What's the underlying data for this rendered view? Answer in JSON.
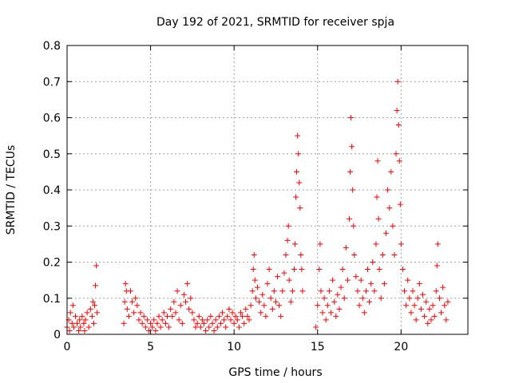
{
  "chart_data": {
    "type": "scatter",
    "title": "Day 192 of 2021, SRMTID for receiver spja",
    "xlabel": "GPS time / hours",
    "ylabel": "SRMTID / TECUs",
    "xlim": [
      0,
      24
    ],
    "ylim": [
      0,
      0.8
    ],
    "x_ticks": [
      0,
      5,
      10,
      15,
      20
    ],
    "y_ticks": [
      0,
      0.1,
      0.2,
      0.3,
      0.4,
      0.5,
      0.6,
      0.7,
      0.8
    ],
    "x_tick_labels": [
      "0",
      "5",
      "10",
      "15",
      "20"
    ],
    "y_tick_labels": [
      "0",
      "0.1",
      "0.2",
      "0.3",
      "0.4",
      "0.5",
      "0.6",
      "0.7",
      "0.8"
    ],
    "grid": true,
    "marker": "+",
    "marker_color": "#ff0000",
    "series": [
      {
        "name": "SRMTID",
        "points": [
          [
            0.0,
            0.02
          ],
          [
            0.1,
            0.04
          ],
          [
            0.15,
            0.01
          ],
          [
            0.2,
            0.06
          ],
          [
            0.3,
            0.03
          ],
          [
            0.35,
            0.08
          ],
          [
            0.4,
            0.02
          ],
          [
            0.5,
            0.05
          ],
          [
            0.6,
            0.03
          ],
          [
            0.7,
            0.01
          ],
          [
            0.75,
            0.04
          ],
          [
            0.8,
            0.02
          ],
          [
            0.9,
            0.05
          ],
          [
            1.0,
            0.03
          ],
          [
            1.05,
            0.01
          ],
          [
            1.1,
            0.04
          ],
          [
            1.2,
            0.06
          ],
          [
            1.3,
            0.02
          ],
          [
            1.4,
            0.07
          ],
          [
            1.5,
            0.05
          ],
          [
            1.55,
            0.09
          ],
          [
            1.6,
            0.03
          ],
          [
            1.65,
            0.08
          ],
          [
            1.7,
            0.135
          ],
          [
            1.75,
            0.19
          ],
          [
            1.8,
            0.06
          ],
          [
            3.4,
            0.03
          ],
          [
            3.45,
            0.09
          ],
          [
            3.5,
            0.14
          ],
          [
            3.55,
            0.12
          ],
          [
            3.6,
            0.07
          ],
          [
            3.7,
            0.05
          ],
          [
            3.8,
            0.12
          ],
          [
            3.9,
            0.09
          ],
          [
            4.0,
            0.06
          ],
          [
            4.1,
            0.1
          ],
          [
            4.2,
            0.08
          ],
          [
            4.3,
            0.04
          ],
          [
            4.4,
            0.06
          ],
          [
            4.5,
            0.03
          ],
          [
            4.6,
            0.05
          ],
          [
            4.7,
            0.02
          ],
          [
            4.8,
            0.04
          ],
          [
            4.9,
            0.01
          ],
          [
            5.0,
            0.03
          ],
          [
            5.1,
            0.02
          ],
          [
            5.2,
            0.04
          ],
          [
            5.3,
            0.01
          ],
          [
            5.4,
            0.03
          ],
          [
            5.5,
            0.05
          ],
          [
            5.6,
            0.02
          ],
          [
            5.7,
            0.04
          ],
          [
            5.8,
            0.06
          ],
          [
            5.9,
            0.03
          ],
          [
            6.0,
            0.05
          ],
          [
            6.1,
            0.02
          ],
          [
            6.2,
            0.07
          ],
          [
            6.3,
            0.05
          ],
          [
            6.4,
            0.09
          ],
          [
            6.5,
            0.06
          ],
          [
            6.6,
            0.12
          ],
          [
            6.7,
            0.04
          ],
          [
            6.8,
            0.08
          ],
          [
            6.9,
            0.03
          ],
          [
            7.0,
            0.11
          ],
          [
            7.1,
            0.09
          ],
          [
            7.2,
            0.14
          ],
          [
            7.3,
            0.07
          ],
          [
            7.4,
            0.1
          ],
          [
            7.5,
            0.06
          ],
          [
            7.6,
            0.04
          ],
          [
            7.7,
            0.02
          ],
          [
            7.8,
            0.03
          ],
          [
            7.9,
            0.05
          ],
          [
            8.0,
            0.02
          ],
          [
            8.1,
            0.04
          ],
          [
            8.2,
            0.03
          ],
          [
            8.3,
            0.01
          ],
          [
            8.4,
            0.04
          ],
          [
            8.5,
            0.02
          ],
          [
            8.6,
            0.05
          ],
          [
            8.7,
            0.03
          ],
          [
            8.8,
            0.01
          ],
          [
            8.9,
            0.04
          ],
          [
            9.0,
            0.02
          ],
          [
            9.1,
            0.05
          ],
          [
            9.2,
            0.03
          ],
          [
            9.3,
            0.06
          ],
          [
            9.4,
            0.04
          ],
          [
            9.5,
            0.02
          ],
          [
            9.6,
            0.05
          ],
          [
            9.7,
            0.07
          ],
          [
            9.8,
            0.04
          ],
          [
            9.9,
            0.06
          ],
          [
            10.0,
            0.03
          ],
          [
            10.1,
            0.05
          ],
          [
            10.2,
            0.04
          ],
          [
            10.3,
            0.02
          ],
          [
            10.4,
            0.06
          ],
          [
            10.5,
            0.05
          ],
          [
            10.6,
            0.03
          ],
          [
            10.7,
            0.07
          ],
          [
            10.8,
            0.05
          ],
          [
            10.9,
            0.04
          ],
          [
            11.0,
            0.08
          ],
          [
            11.1,
            0.12
          ],
          [
            11.15,
            0.18
          ],
          [
            11.2,
            0.22
          ],
          [
            11.25,
            0.15
          ],
          [
            11.3,
            0.1
          ],
          [
            11.4,
            0.13
          ],
          [
            11.5,
            0.09
          ],
          [
            11.6,
            0.06
          ],
          [
            11.7,
            0.11
          ],
          [
            11.8,
            0.08
          ],
          [
            11.9,
            0.05
          ],
          [
            12.0,
            0.14
          ],
          [
            12.1,
            0.18
          ],
          [
            12.2,
            0.1
          ],
          [
            12.3,
            0.07
          ],
          [
            12.4,
            0.12
          ],
          [
            12.5,
            0.09
          ],
          [
            12.6,
            0.16
          ],
          [
            12.7,
            0.08
          ],
          [
            12.8,
            0.05
          ],
          [
            12.9,
            0.12
          ],
          [
            13.0,
            0.17
          ],
          [
            13.1,
            0.22
          ],
          [
            13.2,
            0.26
          ],
          [
            13.25,
            0.3
          ],
          [
            13.3,
            0.15
          ],
          [
            13.4,
            0.09
          ],
          [
            13.5,
            0.12
          ],
          [
            13.6,
            0.18
          ],
          [
            13.65,
            0.25
          ],
          [
            13.7,
            0.38
          ],
          [
            13.75,
            0.45
          ],
          [
            13.8,
            0.55
          ],
          [
            13.85,
            0.5
          ],
          [
            13.9,
            0.42
          ],
          [
            13.95,
            0.35
          ],
          [
            14.0,
            0.22
          ],
          [
            14.05,
            0.18
          ],
          [
            14.1,
            0.12
          ],
          [
            14.9,
            0.02
          ],
          [
            15.0,
            0.08
          ],
          [
            15.1,
            0.18
          ],
          [
            15.15,
            0.25
          ],
          [
            15.2,
            0.12
          ],
          [
            15.3,
            0.06
          ],
          [
            15.4,
            0.1
          ],
          [
            15.5,
            0.04
          ],
          [
            15.6,
            0.08
          ],
          [
            15.7,
            0.12
          ],
          [
            15.8,
            0.06
          ],
          [
            15.9,
            0.15
          ],
          [
            16.0,
            0.09
          ],
          [
            16.1,
            0.05
          ],
          [
            16.2,
            0.11
          ],
          [
            16.3,
            0.07
          ],
          [
            16.4,
            0.13
          ],
          [
            16.5,
            0.18
          ],
          [
            16.6,
            0.1
          ],
          [
            16.7,
            0.24
          ],
          [
            16.8,
            0.15
          ],
          [
            16.9,
            0.32
          ],
          [
            16.95,
            0.45
          ],
          [
            17.0,
            0.6
          ],
          [
            17.05,
            0.52
          ],
          [
            17.1,
            0.4
          ],
          [
            17.15,
            0.3
          ],
          [
            17.2,
            0.22
          ],
          [
            17.3,
            0.16
          ],
          [
            17.4,
            0.12
          ],
          [
            17.5,
            0.08
          ],
          [
            17.6,
            0.15
          ],
          [
            17.7,
            0.1
          ],
          [
            17.8,
            0.06
          ],
          [
            17.9,
            0.12
          ],
          [
            18.0,
            0.18
          ],
          [
            18.1,
            0.09
          ],
          [
            18.2,
            0.14
          ],
          [
            18.3,
            0.2
          ],
          [
            18.4,
            0.12
          ],
          [
            18.5,
            0.25
          ],
          [
            18.55,
            0.38
          ],
          [
            18.6,
            0.48
          ],
          [
            18.65,
            0.32
          ],
          [
            18.7,
            0.18
          ],
          [
            18.8,
            0.1
          ],
          [
            18.9,
            0.22
          ],
          [
            19.0,
            0.14
          ],
          [
            19.1,
            0.28
          ],
          [
            19.2,
            0.4
          ],
          [
            19.3,
            0.35
          ],
          [
            19.4,
            0.45
          ],
          [
            19.5,
            0.3
          ],
          [
            19.6,
            0.22
          ],
          [
            19.7,
            0.5
          ],
          [
            19.75,
            0.62
          ],
          [
            19.8,
            0.7
          ],
          [
            19.85,
            0.58
          ],
          [
            19.9,
            0.48
          ],
          [
            19.95,
            0.36
          ],
          [
            20.0,
            0.25
          ],
          [
            20.1,
            0.18
          ],
          [
            20.2,
            0.12
          ],
          [
            20.3,
            0.08
          ],
          [
            20.4,
            0.15
          ],
          [
            20.5,
            0.1
          ],
          [
            20.6,
            0.06
          ],
          [
            20.7,
            0.12
          ],
          [
            20.8,
            0.08
          ],
          [
            20.9,
            0.04
          ],
          [
            21.0,
            0.1
          ],
          [
            21.1,
            0.14
          ],
          [
            21.2,
            0.07
          ],
          [
            21.3,
            0.11
          ],
          [
            21.4,
            0.05
          ],
          [
            21.5,
            0.09
          ],
          [
            21.6,
            0.03
          ],
          [
            21.7,
            0.07
          ],
          [
            21.8,
            0.04
          ],
          [
            21.9,
            0.08
          ],
          [
            22.0,
            0.05
          ],
          [
            22.1,
            0.12
          ],
          [
            22.15,
            0.19
          ],
          [
            22.2,
            0.25
          ],
          [
            22.3,
            0.1
          ],
          [
            22.4,
            0.06
          ],
          [
            22.5,
            0.13
          ],
          [
            22.6,
            0.08
          ],
          [
            22.7,
            0.04
          ],
          [
            22.8,
            0.09
          ]
        ]
      }
    ]
  }
}
